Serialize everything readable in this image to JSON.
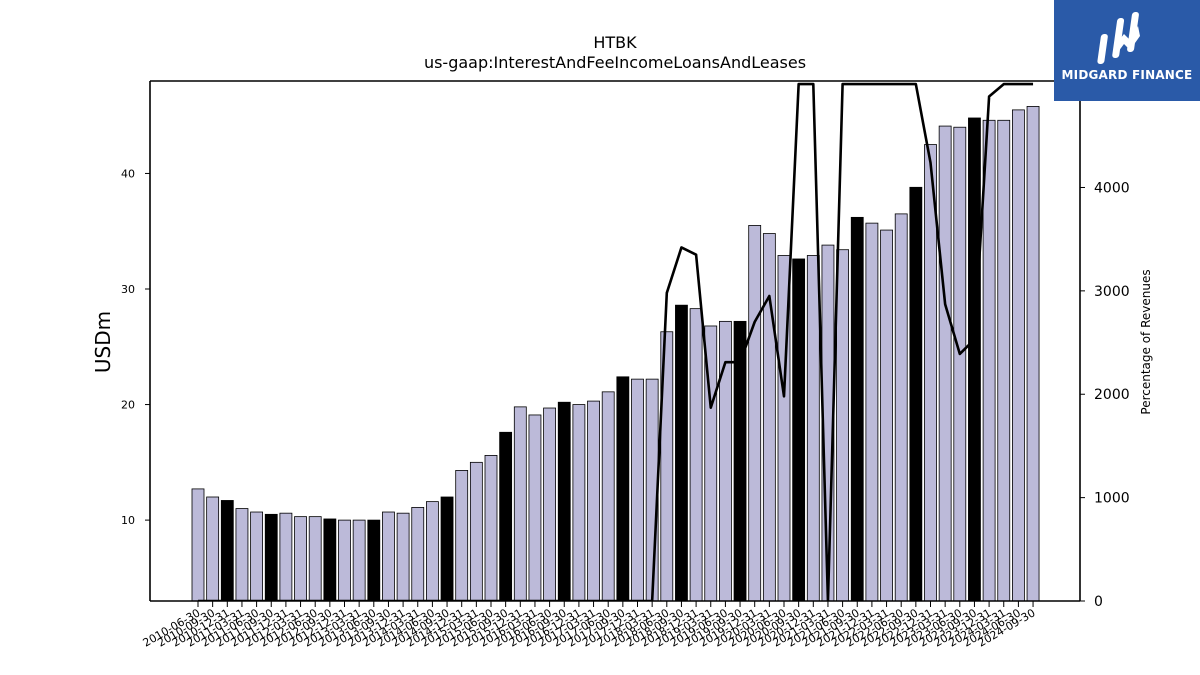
{
  "chart_data": {
    "type": "bar",
    "title": "HTBK",
    "subtitle": "us-gaap:InterestAndFeeIncomeLoansAndLeases",
    "ylabel": "USDm",
    "y2label": "Percentage of Revenues",
    "ylim": [
      3,
      48
    ],
    "y2lim": [
      0,
      5030
    ],
    "yticks": [
      10,
      20,
      30,
      40
    ],
    "y2ticks": [
      0,
      1000,
      2000,
      3000,
      4000
    ],
    "categories": [
      "2010-06-30",
      "2010-09-30",
      "2010-12-31",
      "2011-03-31",
      "2011-06-30",
      "2011-09-30",
      "2011-12-31",
      "2012-03-31",
      "2012-06-30",
      "2012-09-30",
      "2012-12-31",
      "2013-03-31",
      "2013-06-30",
      "2013-09-30",
      "2013-12-31",
      "2014-03-31",
      "2014-06-30",
      "2014-09-30",
      "2014-12-31",
      "2015-03-31",
      "2015-06-30",
      "2015-09-30",
      "2015-12-31",
      "2016-03-31",
      "2016-06-30",
      "2016-09-30",
      "2016-12-31",
      "2017-03-31",
      "2017-06-30",
      "2017-09-30",
      "2017-12-31",
      "2018-03-31",
      "2018-06-30",
      "2018-09-30",
      "2018-12-31",
      "2019-03-31",
      "2019-06-30",
      "2019-09-30",
      "2019-12-31",
      "2020-03-31",
      "2020-06-30",
      "2020-09-30",
      "2020-12-31",
      "2021-03-31",
      "2021-06-30",
      "2021-09-30",
      "2021-12-31",
      "2022-03-31",
      "2022-06-30",
      "2022-09-30",
      "2022-12-31",
      "2023-03-31",
      "2023-06-30",
      "2023-09-30",
      "2023-12-31",
      "2024-03-31",
      "2024-06-30",
      "2024-09-30"
    ],
    "series": [
      {
        "type": "bar",
        "values": [
          12.7,
          12.0,
          11.7,
          11.0,
          10.7,
          10.5,
          10.6,
          10.3,
          10.3,
          10.1,
          10.0,
          10.0,
          10.0,
          10.7,
          10.6,
          11.1,
          11.6,
          12.0,
          14.3,
          15.0,
          15.6,
          17.6,
          19.8,
          19.1,
          19.7,
          20.2,
          20.0,
          20.3,
          21.1,
          22.4,
          22.2,
          22.2,
          26.3,
          28.6,
          28.3,
          26.8,
          27.2,
          27.2,
          35.5,
          34.8,
          32.9,
          32.6,
          32.9,
          33.8,
          33.4,
          36.2,
          35.7,
          35.1,
          36.5,
          38.8,
          42.5,
          44.1,
          44.0,
          44.8,
          44.6,
          44.6,
          45.5,
          45.8
        ],
        "highlight": [
          false,
          false,
          true,
          false,
          false,
          true,
          false,
          false,
          false,
          true,
          false,
          false,
          true,
          false,
          false,
          false,
          false,
          true,
          false,
          false,
          false,
          true,
          false,
          false,
          false,
          true,
          false,
          false,
          false,
          true,
          false,
          false,
          false,
          true,
          false,
          false,
          false,
          true,
          false,
          false,
          false,
          true,
          false,
          false,
          false,
          true,
          false,
          false,
          false,
          true,
          false,
          false,
          false,
          true,
          false,
          false,
          false,
          false
        ]
      },
      {
        "type": "line",
        "axis": "right",
        "values": [
          0,
          0,
          0,
          0,
          0,
          0,
          0,
          0,
          0,
          0,
          0,
          0,
          0,
          0,
          0,
          0,
          0,
          0,
          0,
          0,
          0,
          0,
          0,
          0,
          0,
          0,
          0,
          0,
          0,
          0,
          0,
          0,
          2980,
          3420,
          3350,
          1870,
          2310,
          2310,
          2700,
          2950,
          1980,
          5000,
          5000,
          0,
          5000,
          5000,
          5000,
          5000,
          5000,
          5000,
          4240,
          2870,
          2390,
          2530,
          4880,
          5000,
          5000,
          5000
        ]
      }
    ],
    "colors": {
      "bar": "#bcbad9",
      "bar_highlight": "#000000",
      "bar_edge": "#000000",
      "line": "#000000"
    },
    "grid": false,
    "legend": "none"
  },
  "logo": {
    "text": "MIDGARD FINANCE",
    "background": "#2a5aa8"
  }
}
